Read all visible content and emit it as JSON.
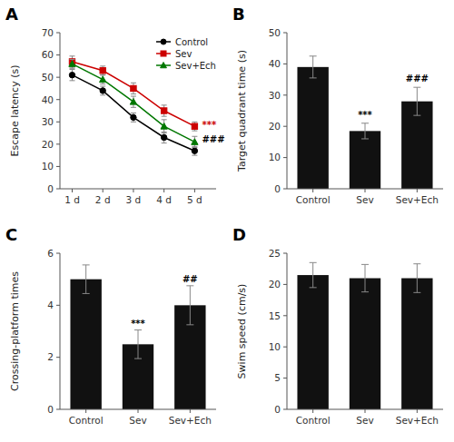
{
  "chart_data": [
    {
      "type": "line",
      "title": "A",
      "x": [
        1,
        2,
        3,
        4,
        5
      ],
      "xlim": [
        0.6,
        5.7
      ],
      "xticks": [
        {
          "value": 1,
          "label": "1 d"
        },
        {
          "value": 2,
          "label": "2 d"
        },
        {
          "value": 3,
          "label": "3 d"
        },
        {
          "value": 4,
          "label": "4 d"
        },
        {
          "value": 5,
          "label": "5 d"
        }
      ],
      "ylabel": "Escape latency (s)",
      "ylim": [
        0,
        70
      ],
      "yticks": [
        0,
        10,
        20,
        30,
        40,
        50,
        60,
        70
      ],
      "series": [
        {
          "name": "Control",
          "color": "#000000",
          "marker": "circle",
          "values": [
            51,
            44,
            32,
            23,
            17
          ],
          "errors": [
            2.5,
            2.0,
            2.0,
            2.5,
            2.0
          ]
        },
        {
          "name": "Sev",
          "color": "#cc0000",
          "marker": "square",
          "values": [
            57,
            53,
            45,
            35,
            28
          ],
          "errors": [
            2.5,
            2.0,
            2.5,
            2.5,
            2.0
          ]
        },
        {
          "name": "Sev+Ech",
          "color": "#007700",
          "marker": "triangle",
          "values": [
            56,
            49,
            39,
            28,
            21
          ],
          "errors": [
            2.0,
            2.0,
            2.5,
            3.0,
            2.5
          ]
        }
      ],
      "annotations": [
        {
          "text": "***",
          "x": 5.18,
          "y": 28.5,
          "color": "#cc0000"
        },
        {
          "text": "###",
          "x": 5.18,
          "y": 22,
          "color": "#000000"
        }
      ],
      "legend": "upper right",
      "grid": false
    },
    {
      "type": "bar",
      "title": "B",
      "categories": [
        "Control",
        "Sev",
        "Sev+Ech"
      ],
      "values": [
        39,
        18.5,
        28
      ],
      "errors": [
        3.5,
        2.5,
        4.5
      ],
      "color": "#111111",
      "ylabel": "Target quadrant time (s)",
      "ylim": [
        0,
        50
      ],
      "yticks": [
        0,
        10,
        20,
        30,
        40,
        50
      ],
      "annotations": [
        {
          "text": "***",
          "x": "Sev",
          "y": 22.5,
          "color": "#000000"
        },
        {
          "text": "###",
          "x": "Sev+Ech",
          "y": 34.0,
          "color": "#000000"
        }
      ],
      "grid": false
    },
    {
      "type": "bar",
      "title": "C",
      "categories": [
        "Control",
        "Sev",
        "Sev+Ech"
      ],
      "values": [
        5.0,
        2.5,
        4.0
      ],
      "errors": [
        0.55,
        0.55,
        0.75
      ],
      "color": "#111111",
      "ylabel": "Crossing-platform times",
      "ylim": [
        0,
        6
      ],
      "yticks": [
        0,
        2,
        4,
        6
      ],
      "annotations": [
        {
          "text": "***",
          "x": "Sev",
          "y": 3.15,
          "color": "#000000"
        },
        {
          "text": "##",
          "x": "Sev+Ech",
          "y": 4.85,
          "color": "#000000"
        }
      ],
      "grid": false
    },
    {
      "type": "bar",
      "title": "D",
      "categories": [
        "Control",
        "Sev",
        "Sev+Ech"
      ],
      "values": [
        21.5,
        21.0,
        21.0
      ],
      "errors": [
        2.0,
        2.2,
        2.3
      ],
      "color": "#111111",
      "ylabel": "Swim speed (cm/s)",
      "ylim": [
        0,
        25
      ],
      "yticks": [
        0,
        5,
        10,
        15,
        20,
        25
      ],
      "grid": false
    }
  ]
}
